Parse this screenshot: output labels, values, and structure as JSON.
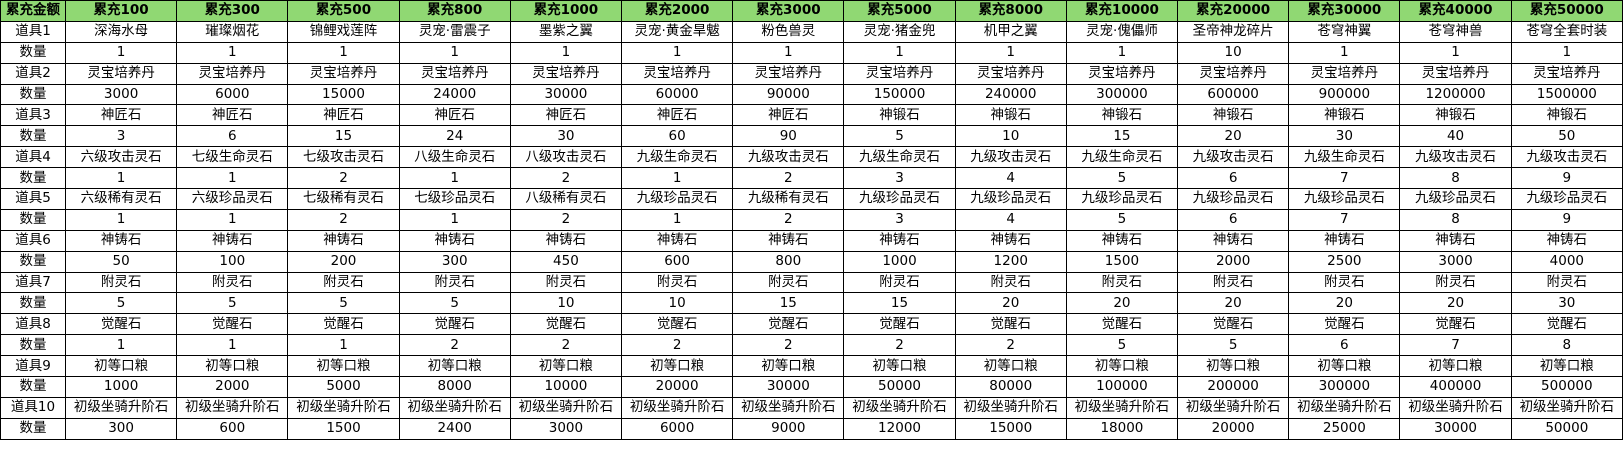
{
  "table": {
    "header_color": "#90d873",
    "headers": [
      "累充金额",
      "累充100",
      "累充300",
      "累充500",
      "累充800",
      "累充1000",
      "累充2000",
      "累充3000",
      "累充5000",
      "累充8000",
      "累充10000",
      "累充20000",
      "累充30000",
      "累充40000",
      "累充50000"
    ],
    "rows": [
      {
        "label": "道具1",
        "values": [
          "深海水母",
          "璀璨烟花",
          "锦鲤戏莲阵",
          "灵宠·雷震子",
          "墨紫之翼",
          "灵宠·黄金旱魃",
          "粉色兽灵",
          "灵宠·猪金兜",
          "机甲之翼",
          "灵宠·傀儡师",
          "圣帝神龙碎片",
          "苍穹神翼",
          "苍穹神兽",
          "苍穹全套时装"
        ]
      },
      {
        "label": "数量",
        "values": [
          "1",
          "1",
          "1",
          "1",
          "1",
          "1",
          "1",
          "1",
          "1",
          "1",
          "10",
          "1",
          "1",
          "1"
        ]
      },
      {
        "label": "道具2",
        "values": [
          "灵宝培养丹",
          "灵宝培养丹",
          "灵宝培养丹",
          "灵宝培养丹",
          "灵宝培养丹",
          "灵宝培养丹",
          "灵宝培养丹",
          "灵宝培养丹",
          "灵宝培养丹",
          "灵宝培养丹",
          "灵宝培养丹",
          "灵宝培养丹",
          "灵宝培养丹",
          "灵宝培养丹"
        ]
      },
      {
        "label": "数量",
        "values": [
          "3000",
          "6000",
          "15000",
          "24000",
          "30000",
          "60000",
          "90000",
          "150000",
          "240000",
          "300000",
          "600000",
          "900000",
          "1200000",
          "1500000"
        ]
      },
      {
        "label": "道具3",
        "values": [
          "神匠石",
          "神匠石",
          "神匠石",
          "神匠石",
          "神匠石",
          "神匠石",
          "神匠石",
          "神锻石",
          "神锻石",
          "神锻石",
          "神锻石",
          "神锻石",
          "神锻石",
          "神锻石"
        ]
      },
      {
        "label": "数量",
        "values": [
          "3",
          "6",
          "15",
          "24",
          "30",
          "60",
          "90",
          "5",
          "10",
          "15",
          "20",
          "30",
          "40",
          "50"
        ]
      },
      {
        "label": "道具4",
        "values": [
          "六级攻击灵石",
          "七级生命灵石",
          "七级攻击灵石",
          "八级生命灵石",
          "八级攻击灵石",
          "九级生命灵石",
          "九级攻击灵石",
          "九级生命灵石",
          "九级攻击灵石",
          "九级生命灵石",
          "九级攻击灵石",
          "九级生命灵石",
          "九级攻击灵石",
          "九级攻击灵石"
        ]
      },
      {
        "label": "数量",
        "values": [
          "1",
          "1",
          "2",
          "1",
          "2",
          "1",
          "2",
          "3",
          "4",
          "5",
          "6",
          "7",
          "8",
          "9"
        ]
      },
      {
        "label": "道具5",
        "values": [
          "六级稀有灵石",
          "六级珍品灵石",
          "七级稀有灵石",
          "七级珍品灵石",
          "八级稀有灵石",
          "九级珍品灵石",
          "九级稀有灵石",
          "九级珍品灵石",
          "九级珍品灵石",
          "九级珍品灵石",
          "九级珍品灵石",
          "九级珍品灵石",
          "九级珍品灵石",
          "九级珍品灵石"
        ]
      },
      {
        "label": "数量",
        "values": [
          "1",
          "1",
          "2",
          "1",
          "2",
          "1",
          "2",
          "3",
          "4",
          "5",
          "6",
          "7",
          "8",
          "9"
        ]
      },
      {
        "label": "道具6",
        "values": [
          "神铸石",
          "神铸石",
          "神铸石",
          "神铸石",
          "神铸石",
          "神铸石",
          "神铸石",
          "神铸石",
          "神铸石",
          "神铸石",
          "神铸石",
          "神铸石",
          "神铸石",
          "神铸石"
        ]
      },
      {
        "label": "数量",
        "values": [
          "50",
          "100",
          "200",
          "300",
          "450",
          "600",
          "800",
          "1000",
          "1200",
          "1500",
          "2000",
          "2500",
          "3000",
          "4000"
        ]
      },
      {
        "label": "道具7",
        "values": [
          "附灵石",
          "附灵石",
          "附灵石",
          "附灵石",
          "附灵石",
          "附灵石",
          "附灵石",
          "附灵石",
          "附灵石",
          "附灵石",
          "附灵石",
          "附灵石",
          "附灵石",
          "附灵石"
        ]
      },
      {
        "label": "数量",
        "values": [
          "5",
          "5",
          "5",
          "5",
          "10",
          "10",
          "15",
          "15",
          "20",
          "20",
          "20",
          "20",
          "20",
          "30"
        ]
      },
      {
        "label": "道具8",
        "values": [
          "觉醒石",
          "觉醒石",
          "觉醒石",
          "觉醒石",
          "觉醒石",
          "觉醒石",
          "觉醒石",
          "觉醒石",
          "觉醒石",
          "觉醒石",
          "觉醒石",
          "觉醒石",
          "觉醒石",
          "觉醒石"
        ]
      },
      {
        "label": "数量",
        "values": [
          "1",
          "1",
          "1",
          "2",
          "2",
          "2",
          "2",
          "2",
          "2",
          "5",
          "5",
          "6",
          "7",
          "8"
        ]
      },
      {
        "label": "道具9",
        "values": [
          "初等口粮",
          "初等口粮",
          "初等口粮",
          "初等口粮",
          "初等口粮",
          "初等口粮",
          "初等口粮",
          "初等口粮",
          "初等口粮",
          "初等口粮",
          "初等口粮",
          "初等口粮",
          "初等口粮",
          "初等口粮"
        ]
      },
      {
        "label": "数量",
        "values": [
          "1000",
          "2000",
          "5000",
          "8000",
          "10000",
          "20000",
          "30000",
          "50000",
          "80000",
          "100000",
          "200000",
          "300000",
          "400000",
          "500000"
        ]
      },
      {
        "label": "道具10",
        "values": [
          "初级坐骑升阶石",
          "初级坐骑升阶石",
          "初级坐骑升阶石",
          "初级坐骑升阶石",
          "初级坐骑升阶石",
          "初级坐骑升阶石",
          "初级坐骑升阶石",
          "初级坐骑升阶石",
          "初级坐骑升阶石",
          "初级坐骑升阶石",
          "初级坐骑升阶石",
          "初级坐骑升阶石",
          "初级坐骑升阶石",
          "初级坐骑升阶石"
        ]
      },
      {
        "label": "数量",
        "values": [
          "300",
          "600",
          "1500",
          "2400",
          "3000",
          "6000",
          "9000",
          "12000",
          "15000",
          "18000",
          "20000",
          "25000",
          "30000",
          "50000"
        ]
      }
    ]
  }
}
